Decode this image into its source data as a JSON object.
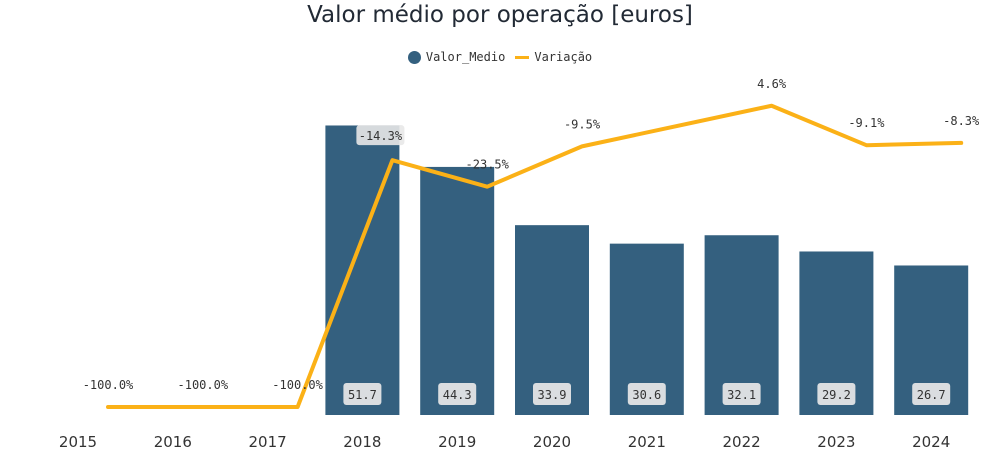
{
  "chart_data": {
    "type": "bar",
    "title": "Valor médio por operação [euros]",
    "categories": [
      "2015",
      "2016",
      "2017",
      "2018",
      "2019",
      "2020",
      "2021",
      "2022",
      "2023",
      "2024"
    ],
    "series": [
      {
        "name": "Valor_Medio",
        "type": "bar",
        "color": "#34607f",
        "values": [
          null,
          null,
          null,
          51.7,
          44.3,
          33.9,
          30.6,
          32.1,
          29.2,
          26.7
        ],
        "labels": [
          "",
          "",
          "",
          "51.7",
          "44.3",
          "33.9",
          "30.6",
          "32.1",
          "29.2",
          "26.7"
        ]
      },
      {
        "name": "Variação",
        "type": "line",
        "color": "#fbb117",
        "values": [
          -100.0,
          -100.0,
          -100.0,
          -14.3,
          -23.5,
          -9.5,
          null,
          4.6,
          -9.1,
          -8.3
        ],
        "labels": [
          "-100.0%",
          "-100.0%",
          "-100.0%",
          "-14.3%",
          "-23.5%",
          "-9.5%",
          "",
          "4.6%",
          "-9.1%",
          "-8.3%"
        ]
      }
    ],
    "xlabel": "",
    "ylabel": "",
    "legend_position": "top-center",
    "grid": false
  }
}
